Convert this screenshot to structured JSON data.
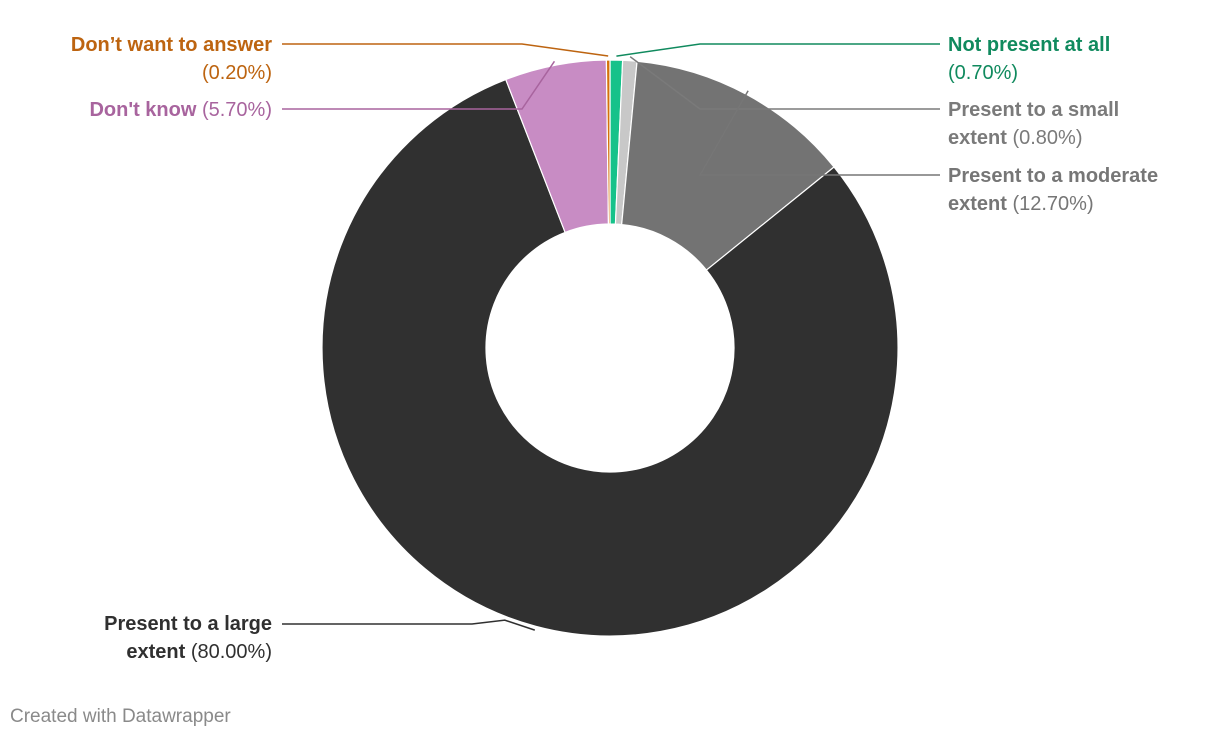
{
  "chart_data": {
    "type": "pie",
    "subtype": "donut",
    "slices": [
      {
        "label": "Not present at all",
        "value_text": "(0.70%)",
        "value": 0.7,
        "color": "#16c28a",
        "label_color": "#108a5e"
      },
      {
        "label": "Present to a small extent",
        "label_line1": "Present to a small",
        "label_line2": "extent",
        "value_text": "(0.80%)",
        "value": 0.8,
        "color": "#c8c8c8",
        "label_color": "#7a7a7a"
      },
      {
        "label": "Present to a moderate extent",
        "label_line1": "Present to a moderate",
        "label_line2": "extent",
        "value_text": "(12.70%)",
        "value": 12.7,
        "color": "#737373",
        "label_color": "#767676"
      },
      {
        "label": "Present to a large extent",
        "label_line1": "Present to a large",
        "label_line2": "extent",
        "value_text": "(80.00%)",
        "value": 80.0,
        "color": "#303030",
        "label_color": "#303030"
      },
      {
        "label": "Don't know",
        "value_text": "(5.70%)",
        "value": 5.7,
        "color": "#c88cc4",
        "label_color": "#a8649e"
      },
      {
        "label": "Don’t want to answer",
        "value_text": "(0.20%)",
        "value": 0.2,
        "color": "#d4720a",
        "label_color": "#bd6410"
      }
    ]
  },
  "footer": {
    "credit": "Created with Datawrapper"
  }
}
